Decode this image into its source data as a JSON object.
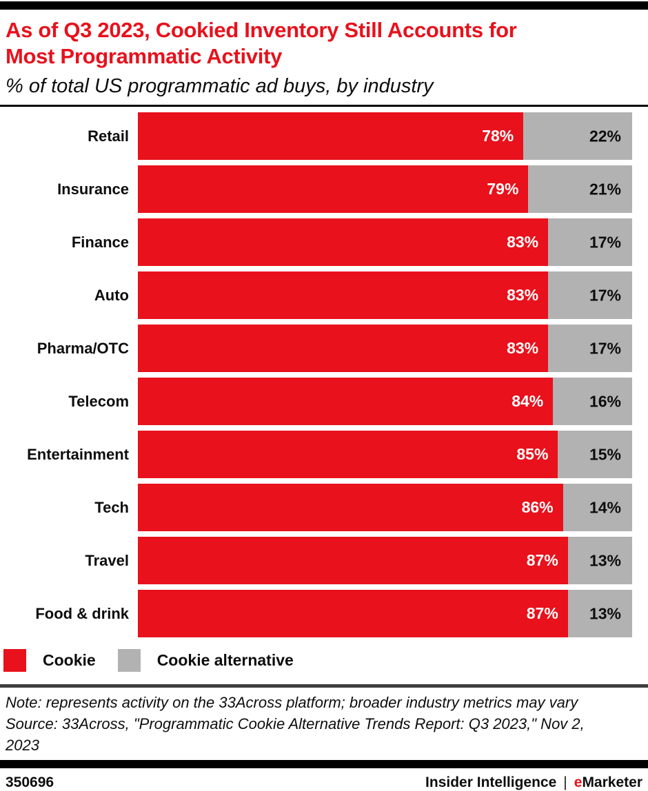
{
  "header": {
    "title_lines": [
      "As of Q3 2023, Cookied Inventory Still Accounts for",
      "Most Programmatic Activity"
    ],
    "subtitle": "% of total US programmatic ad buys, by industry"
  },
  "chart_data": {
    "type": "bar",
    "orientation": "horizontal",
    "stacked": true,
    "title": "As of Q3 2023, Cookied Inventory Still Accounts for Most Programmatic Activity",
    "subtitle": "% of total US programmatic ad buys, by industry",
    "categories": [
      "Retail",
      "Insurance",
      "Finance",
      "Auto",
      "Pharma/OTC",
      "Telecom",
      "Entertainment",
      "Tech",
      "Travel",
      "Food & drink"
    ],
    "series": [
      {
        "name": "Cookie",
        "color": "#e8111c",
        "values": [
          78,
          79,
          83,
          83,
          83,
          84,
          85,
          86,
          87,
          87
        ]
      },
      {
        "name": "Cookie alternative",
        "color": "#b2b2b2",
        "values": [
          22,
          21,
          17,
          17,
          17,
          16,
          15,
          14,
          13,
          13
        ]
      }
    ],
    "value_suffix": "%",
    "xlim": [
      0,
      100
    ],
    "grid": false,
    "legend_position": "bottom"
  },
  "legend": {
    "items": [
      {
        "label": "Cookie",
        "color": "#e8111c"
      },
      {
        "label": "Cookie alternative",
        "color": "#b2b2b2"
      }
    ]
  },
  "notes": {
    "note": "Note: represents activity on the 33Across platform; broader industry metrics may vary",
    "source": "Source: 33Across, \"Programmatic Cookie Alternative Trends Report: Q3 2023,\" Nov 2, 2023"
  },
  "footer": {
    "chart_id": "350696",
    "brand_primary": "Insider Intelligence",
    "separator": "|",
    "brand_secondary_prefix": "e",
    "brand_secondary_rest": "Marketer"
  },
  "colors": {
    "accent_red": "#e8111c",
    "bar_gray": "#b2b2b2",
    "ink": "#0d0d0d"
  }
}
